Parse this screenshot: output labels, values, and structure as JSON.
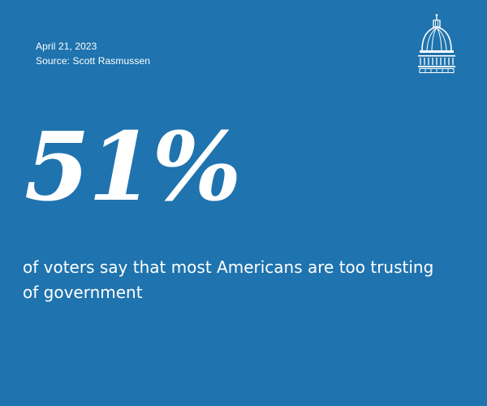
{
  "colors": {
    "background": "#1f73ae",
    "text": "#ffffff"
  },
  "meta": {
    "date": "April 21, 2023",
    "source": "Source: Scott Rasmussen"
  },
  "logo": {
    "icon": "capitol-dome-icon"
  },
  "stat": {
    "value": "51%",
    "caption": "of voters say that most Americans are too trusting of government"
  }
}
